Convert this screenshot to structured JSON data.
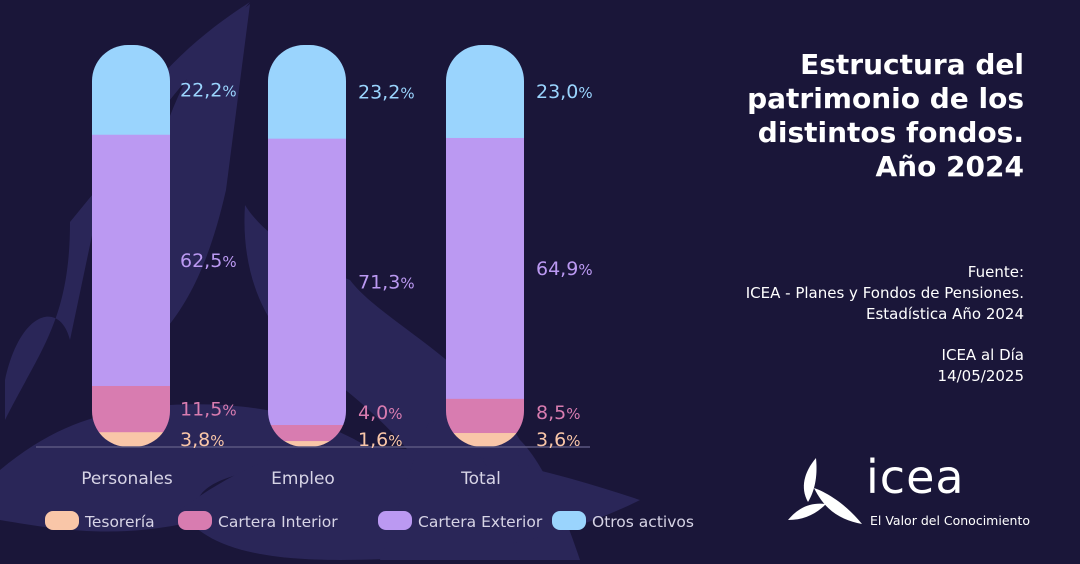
{
  "header": {
    "title_lines": [
      "Estructura del",
      "patrimonio de los",
      "distintos fondos.",
      "Año 2024"
    ]
  },
  "source": {
    "lines": [
      "Fuente:",
      "ICEA - Planes y Fondos de Pensiones.",
      "Estadística Año 2024"
    ],
    "publication": [
      "ICEA al Día",
      "14/05/2025"
    ]
  },
  "logo": {
    "word": "icea",
    "tagline": "El Valor del Conocimiento"
  },
  "colors": {
    "background": "#1a1639",
    "bg_shape": "#2a2658",
    "tesoreria": "#f9c6a8",
    "cartera_interior": "#d87cb0",
    "cartera_exterior": "#bb99f2",
    "otros_activos": "#9ad4fd",
    "baseline": "#5a5680"
  },
  "chart_data": {
    "type": "bar",
    "stacked": true,
    "title": "Estructura del patrimonio de los distintos fondos. Año 2024",
    "xlabel": "",
    "ylabel": "",
    "ylim": [
      0,
      100
    ],
    "categories": [
      "Personales",
      "Empleo",
      "Total"
    ],
    "series": [
      {
        "name": "Tesorería",
        "key": "tesoreria",
        "values": [
          3.8,
          1.6,
          3.6
        ],
        "labels": [
          "3,8",
          "1,6",
          "3,6"
        ]
      },
      {
        "name": "Cartera Interior",
        "key": "cartera_interior",
        "values": [
          11.5,
          4.0,
          8.5
        ],
        "labels": [
          "11,5",
          "4,0",
          "8,5"
        ]
      },
      {
        "name": "Cartera Exterior",
        "key": "cartera_exterior",
        "values": [
          62.5,
          71.3,
          64.9
        ],
        "labels": [
          "62,5",
          "71,3",
          "64,9"
        ]
      },
      {
        "name": "Otros activos",
        "key": "otros_activos",
        "values": [
          22.2,
          23.2,
          23.0
        ],
        "labels": [
          "22,2",
          "23,2",
          "23,0"
        ]
      }
    ],
    "percent_sign": "%",
    "legend": [
      "Tesorería",
      "Cartera Interior",
      "Cartera Exterior",
      "Otros activos"
    ],
    "legend_position": "bottom"
  }
}
